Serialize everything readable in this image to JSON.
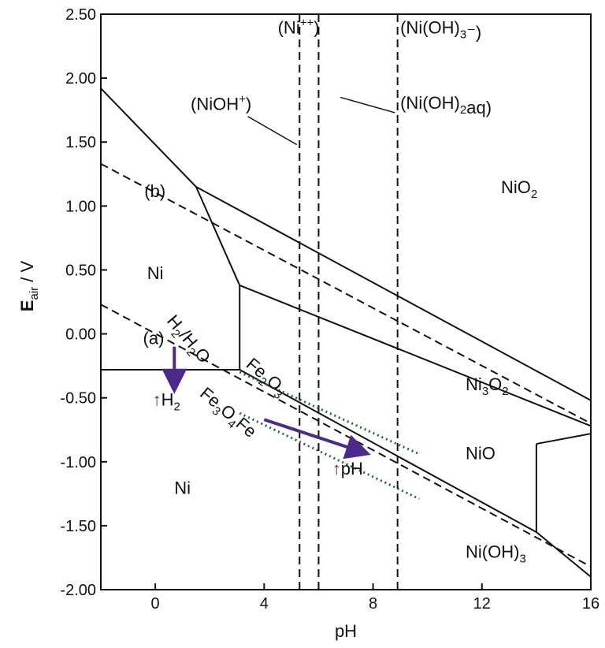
{
  "chart_data": {
    "type": "line",
    "title": "",
    "xlabel": "pH",
    "ylabel": "E",
    "ylabel_sub": "air",
    "ylabel_unit": "/ V",
    "xlim": [
      -2,
      16
    ],
    "ylim": [
      -2.0,
      2.5
    ],
    "xticks": [
      "0",
      "4",
      "8",
      "12",
      "16"
    ],
    "xtick_values": [
      0,
      4,
      8,
      12,
      16
    ],
    "yticks": [
      "2.50",
      "2.00",
      "1.50",
      "1.00",
      "0.50",
      "0.00",
      "-0.50",
      "-1.00",
      "-1.50",
      "-2.00"
    ],
    "ytick_values": [
      2.5,
      2.0,
      1.5,
      1.0,
      0.5,
      0.0,
      -0.5,
      -1.0,
      -1.5,
      -2.0
    ],
    "series": [
      {
        "style": "solid",
        "x": [
          -2,
          1.5
        ],
        "y": [
          1.92,
          1.15
        ]
      },
      {
        "style": "solid",
        "x": [
          1.5,
          3.1
        ],
        "y": [
          1.15,
          0.38
        ]
      },
      {
        "style": "solid",
        "x": [
          3.1,
          3.1
        ],
        "y": [
          0.38,
          -0.28
        ]
      },
      {
        "style": "solid",
        "x": [
          -2,
          3.1
        ],
        "y": [
          -0.28,
          -0.28
        ]
      },
      {
        "style": "solid",
        "x": [
          1.5,
          16
        ],
        "y": [
          1.15,
          -0.52
        ]
      },
      {
        "style": "solid",
        "x": [
          3.1,
          16
        ],
        "y": [
          0.38,
          -0.72
        ]
      },
      {
        "style": "solid",
        "x": [
          3.1,
          14
        ],
        "y": [
          -0.28,
          -1.55
        ]
      },
      {
        "style": "solid",
        "x": [
          14,
          14
        ],
        "y": [
          -0.86,
          -1.55
        ]
      },
      {
        "style": "solid",
        "x": [
          14,
          16
        ],
        "y": [
          -0.86,
          -0.78
        ]
      },
      {
        "style": "solid",
        "x": [
          14,
          16
        ],
        "y": [
          -1.55,
          -1.9
        ]
      },
      {
        "style": "dashed",
        "x": [
          -2,
          16
        ],
        "y": [
          1.33,
          -0.7
        ]
      },
      {
        "style": "dashed",
        "x": [
          -2,
          16
        ],
        "y": [
          0.23,
          -1.82
        ]
      },
      {
        "style": "dashed",
        "x": [
          5.3,
          5.3
        ],
        "y": [
          2.5,
          -2.0
        ]
      },
      {
        "style": "dashed",
        "x": [
          6.0,
          6.0
        ],
        "y": [
          2.5,
          -2.0
        ]
      },
      {
        "style": "dashed",
        "x": [
          8.9,
          8.9
        ],
        "y": [
          2.5,
          -2.0
        ]
      },
      {
        "style": "dotted",
        "color": "#1f6e2f",
        "x": [
          3.1,
          9.7
        ],
        "y": [
          -0.3,
          -0.94
        ]
      },
      {
        "style": "dotted",
        "color": "#1f6e2f",
        "x": [
          3.1,
          9.7
        ],
        "y": [
          -0.62,
          -1.29
        ]
      }
    ],
    "arrows": [
      {
        "color": "#4b2a8a",
        "x": [
          0.7,
          0.7
        ],
        "y": [
          -0.1,
          -0.42
        ]
      },
      {
        "color": "#4b2a8a",
        "x": [
          4.0,
          7.7
        ],
        "y": [
          -0.67,
          -0.93
        ]
      }
    ],
    "annotations": [
      {
        "text": "(Ni",
        "sup": "++",
        "suffix": ")",
        "x": 4.5,
        "y": 2.35
      },
      {
        "text": "(Ni(OH)",
        "sub": "3",
        "suffix": "⁻)",
        "x": 9.0,
        "y": 2.35
      },
      {
        "text": "(NiOH",
        "sup": "+",
        "suffix": ")",
        "x": 1.3,
        "y": 1.75
      },
      {
        "text": "(Ni(OH)",
        "sub": "2",
        "suffix": "aq)",
        "x": 9.0,
        "y": 1.76
      },
      {
        "text": "NiO",
        "sub": "2",
        "suffix": "",
        "x": 12.7,
        "y": 1.1
      },
      {
        "text": "(b)",
        "sub": "",
        "suffix": "",
        "x": -0.4,
        "y": 1.07
      },
      {
        "text": "Ni",
        "sub": "",
        "suffix": "",
        "x": -0.3,
        "y": 0.43
      },
      {
        "text": "(a)",
        "sub": "",
        "suffix": "",
        "x": -0.45,
        "y": -0.08
      },
      {
        "text": "Ni",
        "sub": "3",
        "mid": "O",
        "sub2": "2",
        "suffix": "",
        "x": 11.4,
        "y": -0.44
      },
      {
        "text": "NiO",
        "sub": "",
        "suffix": "",
        "x": 11.4,
        "y": -0.98
      },
      {
        "text": "Ni",
        "sub": "",
        "suffix": "",
        "x": 0.7,
        "y": -1.25
      },
      {
        "text": "Ni(OH)",
        "sub": "3",
        "suffix": "",
        "x": 11.4,
        "y": -1.75
      }
    ],
    "rotated_annotations": [
      {
        "text": "H",
        "sub": "2",
        "mid": "/H",
        "sub2": "2",
        "suffix": "O",
        "x": 0.4,
        "y": 0.1
      },
      {
        "text": "Fe",
        "sub": "2",
        "mid": "O",
        "sub2": "3",
        "suffix": "",
        "x": 3.3,
        "y": -0.25
      },
      {
        "text": "Fe",
        "sub": "3",
        "mid": "O",
        "sub2": "4",
        "suffix": "Fe",
        "x": 1.6,
        "y": -0.48
      }
    ],
    "markers": [
      {
        "text": "↑H",
        "sub": "2",
        "x": -0.1,
        "y": -0.56
      },
      {
        "text": "↑pH",
        "sub": "",
        "x": 6.5,
        "y": -1.1
      }
    ]
  }
}
